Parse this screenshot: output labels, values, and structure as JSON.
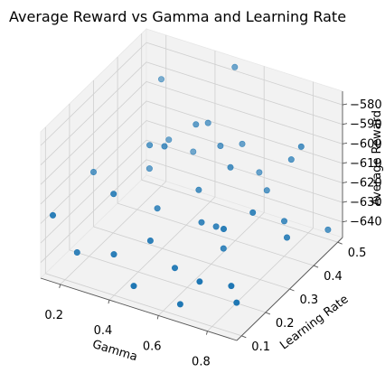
{
  "chart_data": {
    "type": "scatter3d",
    "title": "Average Reward vs Gamma and Learning Rate",
    "xlabel": "Gamma",
    "ylabel": "Learning Rate",
    "zlabel": "Average Reward",
    "x_ticks": [
      "0.2",
      "0.4",
      "0.6",
      "0.8"
    ],
    "y_ticks": [
      "0.1",
      "0.2",
      "0.3",
      "0.4",
      "0.5"
    ],
    "z_ticks": [
      "−580",
      "−590",
      "−600",
      "−610",
      "−620",
      "−630",
      "−640"
    ],
    "grid": true,
    "point_color": "#1f77b4",
    "points": [
      {
        "x": 0.5,
        "y": 0.5,
        "z": -575
      },
      {
        "x": 0.82,
        "y": 0.45,
        "z": -597
      },
      {
        "x": 0.22,
        "y": 0.48,
        "z": -590
      },
      {
        "x": 0.38,
        "y": 0.33,
        "z": -600
      },
      {
        "x": 0.9,
        "y": 0.48,
        "z": -640
      },
      {
        "x": 0.15,
        "y": 0.1,
        "z": -617
      },
      {
        "x": 0.44,
        "y": 0.45,
        "z": -600
      },
      {
        "x": 0.6,
        "y": 0.38,
        "z": -608
      },
      {
        "x": 0.75,
        "y": 0.48,
        "z": -610
      },
      {
        "x": 0.58,
        "y": 0.28,
        "z": -625
      },
      {
        "x": 0.3,
        "y": 0.2,
        "z": -612
      },
      {
        "x": 0.35,
        "y": 0.15,
        "z": -635
      },
      {
        "x": 0.78,
        "y": 0.2,
        "z": -640
      },
      {
        "x": 0.65,
        "y": 0.12,
        "z": -645
      },
      {
        "x": 0.52,
        "y": 0.42,
        "z": -605
      },
      {
        "x": 0.12,
        "y": 0.3,
        "z": -620
      },
      {
        "x": 0.55,
        "y": 0.2,
        "z": -640
      },
      {
        "x": 0.7,
        "y": 0.25,
        "z": -620
      },
      {
        "x": 0.42,
        "y": 0.42,
        "z": -598
      },
      {
        "x": 0.48,
        "y": 0.1,
        "z": -640
      },
      {
        "x": 0.62,
        "y": 0.3,
        "z": -628
      },
      {
        "x": 0.86,
        "y": 0.35,
        "z": -630
      },
      {
        "x": 0.3,
        "y": 0.35,
        "z": -605
      },
      {
        "x": 0.68,
        "y": 0.45,
        "z": -625
      },
      {
        "x": 0.2,
        "y": 0.15,
        "z": -640
      },
      {
        "x": 0.4,
        "y": 0.28,
        "z": -625
      },
      {
        "x": 0.75,
        "y": 0.32,
        "z": -618
      },
      {
        "x": 0.5,
        "y": 0.35,
        "z": -620
      },
      {
        "x": 0.25,
        "y": 0.4,
        "z": -625
      },
      {
        "x": 0.6,
        "y": 0.5,
        "z": -625
      },
      {
        "x": 0.88,
        "y": 0.12,
        "z": -635
      },
      {
        "x": 0.45,
        "y": 0.2,
        "z": -630
      },
      {
        "x": 0.8,
        "y": 0.4,
        "z": -630
      },
      {
        "x": 0.35,
        "y": 0.48,
        "z": -622
      },
      {
        "x": 0.7,
        "y": 0.15,
        "z": -635
      },
      {
        "x": 0.55,
        "y": 0.48,
        "z": -610
      },
      {
        "x": 0.28,
        "y": 0.45,
        "z": -615
      },
      {
        "x": 0.65,
        "y": 0.3,
        "z": -638
      }
    ]
  }
}
